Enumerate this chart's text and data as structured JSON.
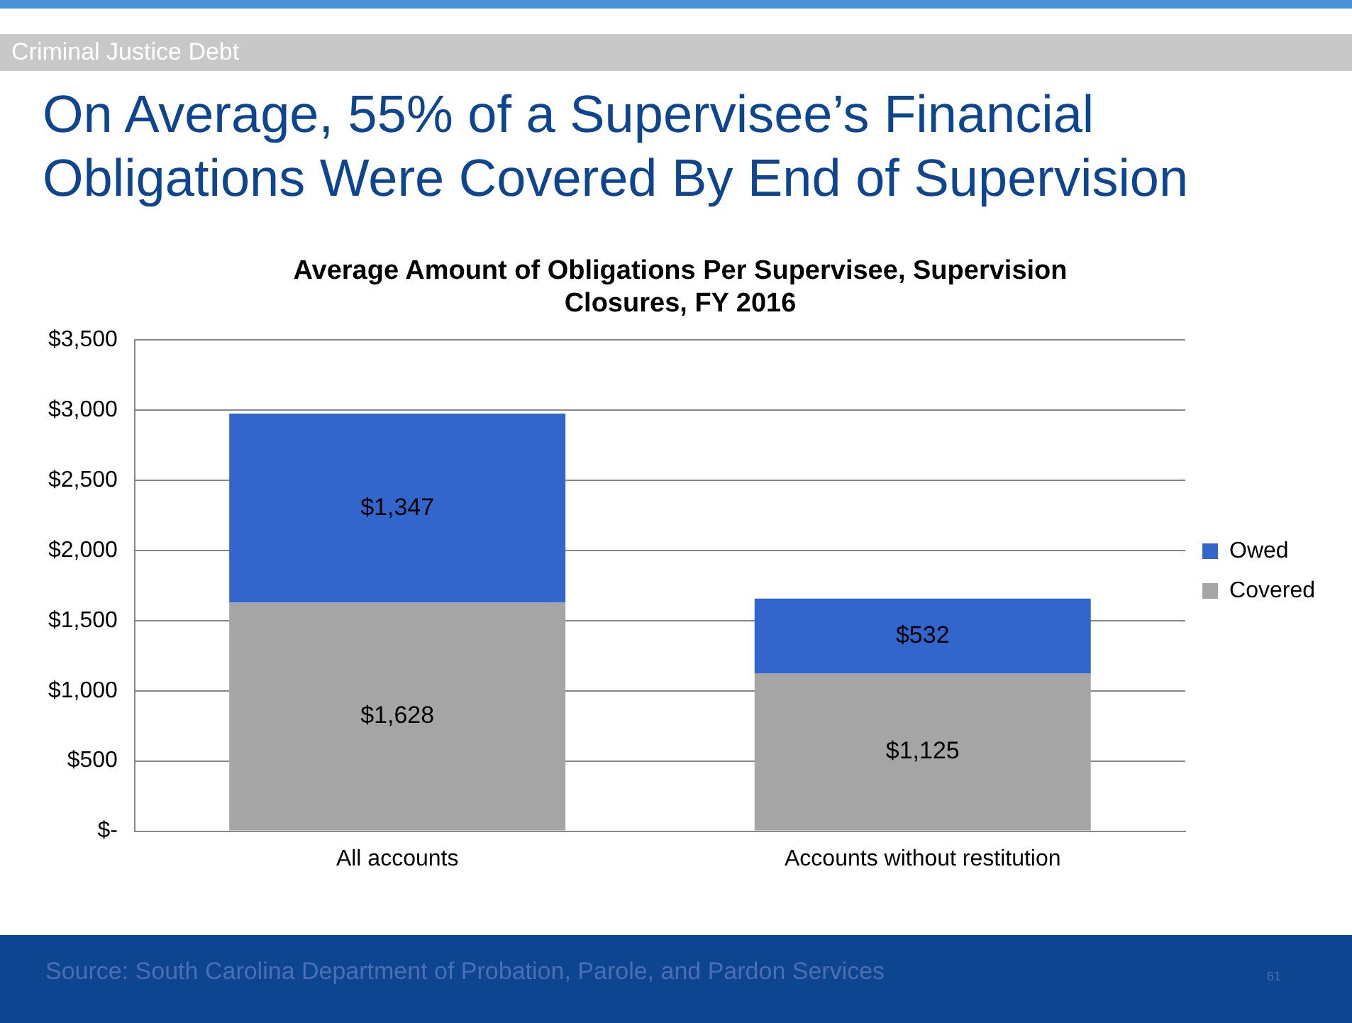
{
  "chart_data": {
    "type": "bar",
    "title": "On Average, 55% of a Supervisee’s Financial Obligations Were Covered By End of Supervision",
    "subtitle": "Average Amount of Obligations Per Supervisee, Supervision Closures, FY 2016",
    "annotations": [
      "Criminal Justice Debt",
      "Source: South Carolina Department of Probation, Parole, and Pardon Services",
      "61"
    ],
    "categories": [
      "All accounts",
      "Accounts without restitution"
    ],
    "stacked": true,
    "series": [
      {
        "name": "Covered",
        "color": "#a5a5a5",
        "values": [
          1628,
          1125
        ],
        "value_labels": [
          "$1,628",
          "$1,125"
        ]
      },
      {
        "name": "Owed",
        "color": "#3366cc",
        "values": [
          1347,
          532
        ],
        "value_labels": [
          "$1,347",
          "$532"
        ]
      }
    ],
    "ylim": [
      0,
      3500
    ],
    "yticks": [
      {
        "value": 0,
        "label": "$-"
      },
      {
        "value": 500,
        "label": "$500"
      },
      {
        "value": 1000,
        "label": "$1,000"
      },
      {
        "value": 1500,
        "label": "$1,500"
      },
      {
        "value": 2000,
        "label": "$2,000"
      },
      {
        "value": 2500,
        "label": "$2,500"
      },
      {
        "value": 3000,
        "label": "$3,000"
      },
      {
        "value": 3500,
        "label": "$3,500"
      }
    ],
    "grid": "y",
    "legend": "right"
  }
}
